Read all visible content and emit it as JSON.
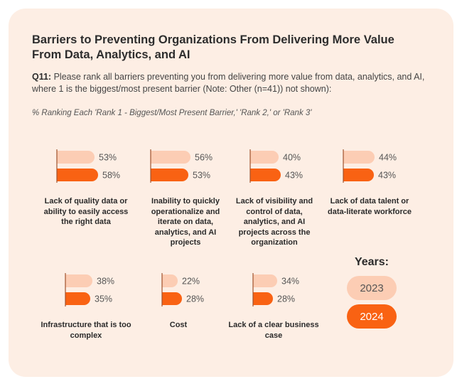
{
  "chart_data": {
    "type": "bar",
    "orientation": "horizontal",
    "title": "Barriers to Preventing Organizations From Delivering More Value From Data, Analytics, and AI",
    "question_label": "Q11:",
    "question_text": "Please rank all barriers preventing you from delivering more value from data, analytics, and AI, where 1 is the biggest/most present barrier (Note: Other (n=41)) not shown):",
    "subtitle": "% Ranking Each 'Rank 1 - Biggest/Most Present Barrier,' 'Rank 2,' or 'Rank 3'",
    "legend_title": "Years:",
    "series": [
      {
        "name": "2023",
        "color": "#fccdb4",
        "values": [
          53,
          56,
          40,
          44,
          38,
          22,
          34
        ],
        "labels": [
          "53%",
          "56%",
          "40%",
          "44%",
          "38%",
          "22%",
          "34%"
        ]
      },
      {
        "name": "2024",
        "color": "#f96213",
        "values": [
          58,
          53,
          43,
          43,
          35,
          28,
          28
        ],
        "labels": [
          "58%",
          "53%",
          "43%",
          "43%",
          "35%",
          "28%",
          "28%"
        ]
      }
    ],
    "categories": [
      "Lack of quality data or ability to easily access the right data",
      "Inability to quickly operationalize and iterate on data, analytics, and AI projects",
      "Lack of visibility and control of data, analytics, and AI projects across the organization",
      "Lack of data talent or data-literate workforce",
      "Infrastructure that is too complex",
      "Cost",
      "Lack of a clear business case"
    ],
    "xlim": [
      0,
      100
    ]
  }
}
